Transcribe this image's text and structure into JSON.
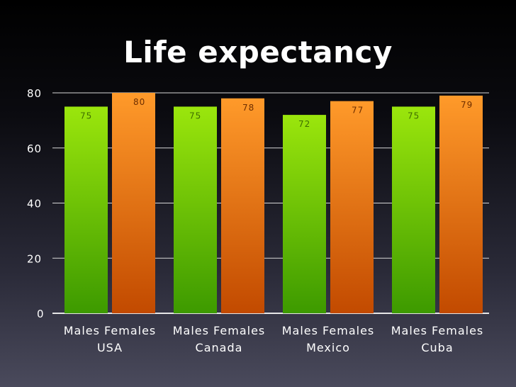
{
  "chart_data": {
    "type": "bar",
    "title": "Life expectancy",
    "xlabel": "",
    "ylabel": "",
    "ylim": [
      0,
      80
    ],
    "yticks": [
      0,
      20,
      40,
      60,
      80
    ],
    "grid": true,
    "groups": [
      "USA",
      "Canada",
      "Mexico",
      "Cuba"
    ],
    "group_member_labels": "Males Females",
    "series": [
      {
        "name": "Males",
        "color": "#7dd10a",
        "values": [
          75,
          75,
          72,
          75
        ]
      },
      {
        "name": "Females",
        "color": "#f07a15",
        "values": [
          80,
          78,
          77,
          79
        ]
      }
    ],
    "data_labels": [
      [
        "75",
        "80"
      ],
      [
        "75",
        "78"
      ],
      [
        "72",
        "77"
      ],
      [
        "75",
        "79"
      ]
    ]
  }
}
